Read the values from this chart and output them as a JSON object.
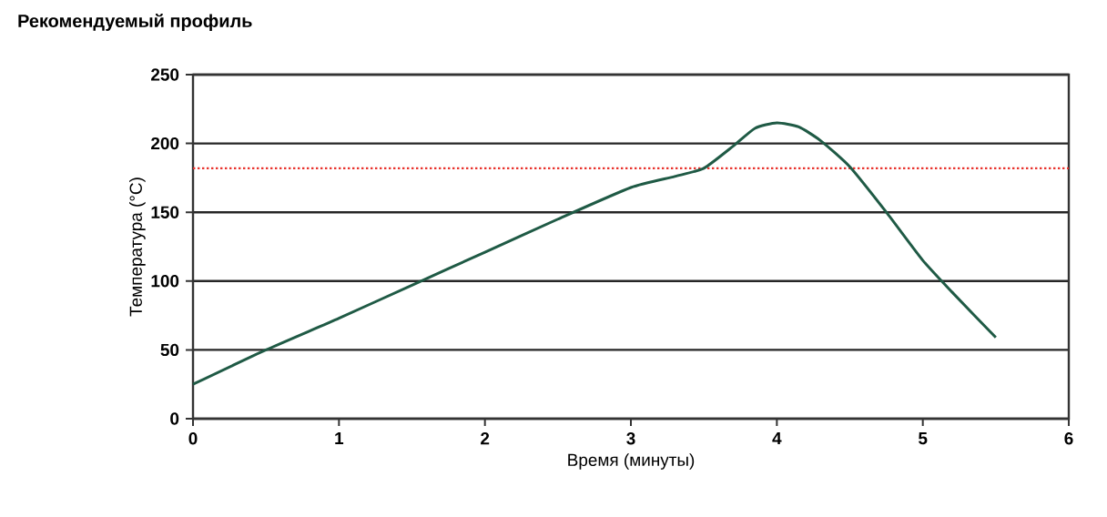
{
  "chart_data": {
    "type": "line",
    "title": "Рекомендуемый профиль",
    "xlabel": "Время (минуты)",
    "ylabel": "Температура (°C)",
    "x": [
      0,
      0.5,
      1,
      1.5,
      2,
      2.5,
      3,
      3.3,
      3.5,
      3.7,
      3.85,
      4,
      4.15,
      4.3,
      4.5,
      4.75,
      5,
      5.2,
      5.5
    ],
    "series": [
      {
        "color": "#1f5a45",
        "values": [
          25,
          50,
          73,
          97,
          121,
          145,
          168,
          176,
          182,
          198,
          211,
          215,
          212,
          202,
          183,
          150,
          115,
          92,
          59
        ]
      }
    ],
    "xlim": [
      0,
      6
    ],
    "xticks": [
      0,
      1,
      2,
      3,
      4,
      5,
      6
    ],
    "ylim": [
      0,
      250
    ],
    "yticks": [
      0,
      50,
      100,
      150,
      200,
      250
    ],
    "grid": "y",
    "marker": "none",
    "line_style": "solid",
    "ref_lines": [
      {
        "axis": "y",
        "value": 182,
        "color": "#e8322c",
        "line_style": "dotted"
      }
    ]
  }
}
